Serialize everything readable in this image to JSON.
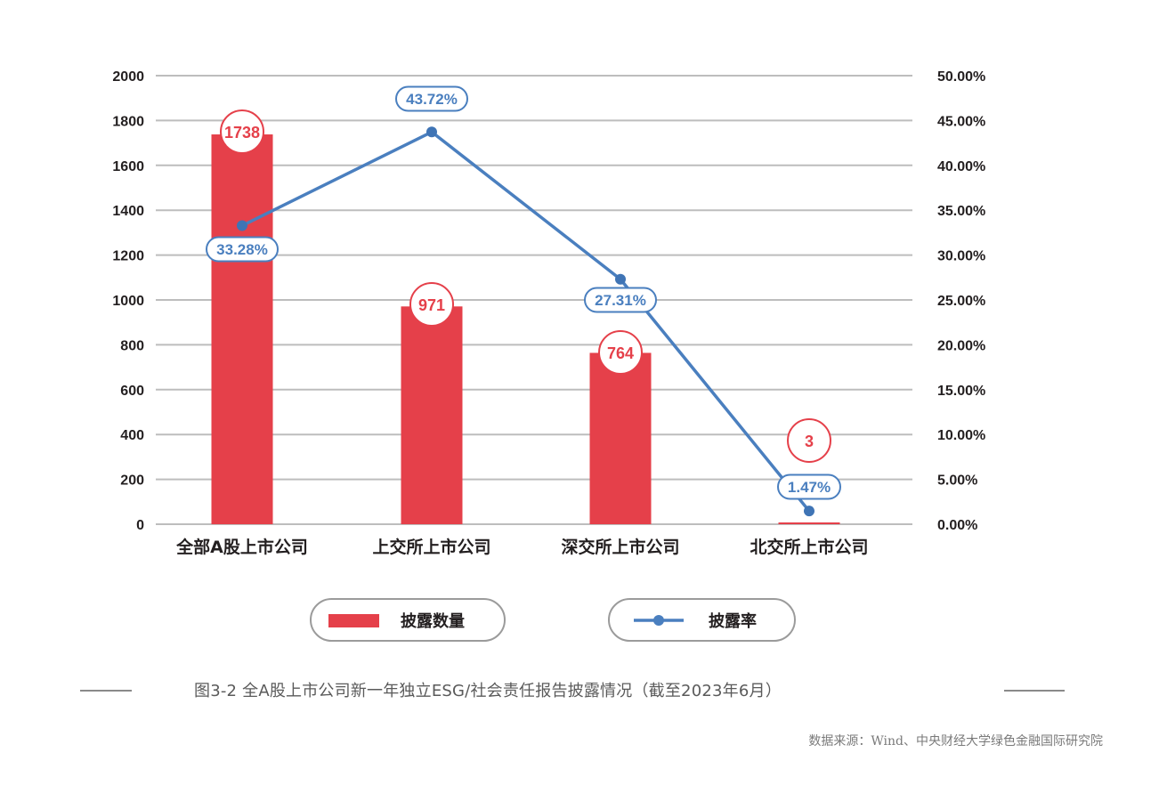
{
  "chart_data": {
    "type": "bar+line",
    "title": "图3-2 全A股上市公司新一年独立ESG/社会责任报告披露情况（截至2023年6月）",
    "categories": [
      "全部A股上市公司",
      "上交所上市公司",
      "深交所上市公司",
      "北交所上市公司"
    ],
    "series": [
      {
        "name": "披露数量",
        "type": "bar",
        "axis": "left",
        "color": "#e5404a",
        "values": [
          1738,
          971,
          764,
          3
        ],
        "labels": [
          "1738",
          "971",
          "764",
          "3"
        ]
      },
      {
        "name": "披露率",
        "type": "line",
        "axis": "right",
        "color": "#4a7fbf",
        "values": [
          33.28,
          43.72,
          27.31,
          1.47
        ],
        "labels": [
          "33.28%",
          "43.72%",
          "27.31%",
          "1.47%"
        ]
      }
    ],
    "left_axis": {
      "min": 0,
      "max": 2000,
      "step": 200,
      "ticks": [
        "0",
        "200",
        "400",
        "600",
        "800",
        "1000",
        "1200",
        "1400",
        "1600",
        "1800",
        "2000"
      ]
    },
    "right_axis": {
      "min": 0,
      "max": 50,
      "step": 5,
      "ticks": [
        "0.00%",
        "5.00%",
        "10.00%",
        "15.00%",
        "20.00%",
        "25.00%",
        "30.00%",
        "35.00%",
        "40.00%",
        "45.00%",
        "50.00%"
      ]
    },
    "xlabel": "",
    "ylabel": "",
    "grid": true,
    "legend_position": "bottom",
    "source": "数据来源：Wind、中央财经大学绿色金融国际研究院"
  },
  "legend": {
    "bar_label": "披露数量",
    "line_label": "披露率"
  },
  "caption": "图3-2  全A股上市公司新一年独立ESG/社会责任报告披露情况（截至2023年6月）",
  "source": "数据来源：Wind、中央财经大学绿色金融国际研究院"
}
